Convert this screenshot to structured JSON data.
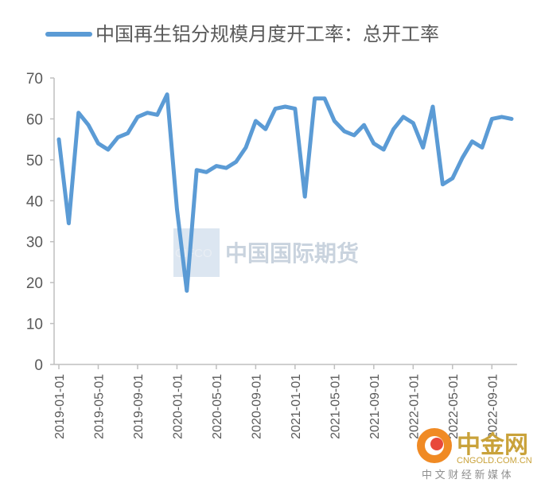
{
  "chart_data": {
    "type": "line",
    "legend": {
      "label": "中国再生铝分规模月度开工率：总开工率",
      "position": "top"
    },
    "color": "#5b9bd5",
    "ylim": [
      0,
      70
    ],
    "yticks": [
      0,
      10,
      20,
      30,
      40,
      50,
      60,
      70
    ],
    "grid": false,
    "x_tick_labels": [
      "2019-01-01",
      "2019-05-01",
      "2019-09-01",
      "2020-01-01",
      "2020-05-01",
      "2020-09-01",
      "2021-01-01",
      "2021-05-01",
      "2021-09-01",
      "2022-01-01",
      "2022-05-01",
      "2022-09-01"
    ],
    "series": [
      {
        "x": [
          "2019-01",
          "2019-02",
          "2019-03",
          "2019-04",
          "2019-05",
          "2019-06",
          "2019-07",
          "2019-08",
          "2019-09",
          "2019-10",
          "2019-11",
          "2019-12",
          "2020-01",
          "2020-02",
          "2020-03",
          "2020-04",
          "2020-05",
          "2020-06",
          "2020-07",
          "2020-08",
          "2020-09",
          "2020-10",
          "2020-11",
          "2020-12",
          "2021-01",
          "2021-02",
          "2021-03",
          "2021-04",
          "2021-05",
          "2021-06",
          "2021-07",
          "2021-08",
          "2021-09",
          "2021-10",
          "2021-11",
          "2021-12",
          "2022-01",
          "2022-02",
          "2022-03",
          "2022-04",
          "2022-05",
          "2022-06",
          "2022-07",
          "2022-08",
          "2022-09",
          "2022-10",
          "2022-11"
        ],
        "values": [
          55,
          34.5,
          61.5,
          58.5,
          54,
          52.5,
          55.5,
          56.5,
          60.5,
          61.5,
          61,
          66,
          38,
          18,
          47.5,
          47,
          48.5,
          48,
          49.5,
          53,
          59.5,
          57.5,
          62.5,
          63,
          62.5,
          41,
          65,
          65,
          59.5,
          57,
          56,
          58.5,
          54,
          52.5,
          57.5,
          60.5,
          59,
          53,
          63,
          44,
          45.5,
          50.5,
          54.5,
          53,
          60,
          60.5,
          60
        ]
      }
    ]
  },
  "watermark": {
    "text": "中国国际期货",
    "box_text": "CIFCO"
  },
  "logo": {
    "main": "中金网",
    "domain": "CNGOLD.COM.CN",
    "tagline": "中 文 财 经 新 媒 体"
  }
}
